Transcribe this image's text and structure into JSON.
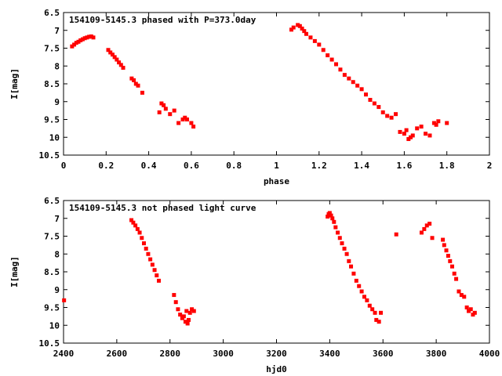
{
  "chart_data": [
    {
      "type": "scatter",
      "title": "154109-5145.3 phased with P=373.0day",
      "xlabel": "phase",
      "ylabel": "I[mag]",
      "xlim": [
        0,
        2
      ],
      "ylim": [
        10.5,
        6.5
      ],
      "y_inverted": true,
      "grid": false,
      "x_ticks": [
        "0",
        "0.2",
        "0.4",
        "0.6",
        "0.8",
        "1",
        "1.2",
        "1.4",
        "1.6",
        "1.8",
        "2"
      ],
      "y_ticks": [
        "6.5",
        "7",
        "7.5",
        "8",
        "8.5",
        "9",
        "9.5",
        "10",
        "10.5"
      ],
      "color": "#ff0000",
      "series": [
        {
          "x": [
            0.04,
            0.05,
            0.06,
            0.07,
            0.08,
            0.09,
            0.1,
            0.11,
            0.12,
            0.13,
            0.14,
            0.21,
            0.22,
            0.23,
            0.24,
            0.25,
            0.26,
            0.27,
            0.28,
            0.32,
            0.33,
            0.34,
            0.35,
            0.37,
            0.45,
            0.46,
            0.47,
            0.48,
            0.5,
            0.52,
            0.54,
            0.56,
            0.57,
            0.58,
            0.6,
            0.61,
            1.07,
            1.08,
            1.1,
            1.11,
            1.12,
            1.13,
            1.14,
            1.16,
            1.18,
            1.2,
            1.22,
            1.24,
            1.26,
            1.28,
            1.3,
            1.32,
            1.34,
            1.36,
            1.38,
            1.4,
            1.42,
            1.44,
            1.46,
            1.48,
            1.5,
            1.52,
            1.54,
            1.56,
            1.58,
            1.6,
            1.61,
            1.62,
            1.63,
            1.64,
            1.66,
            1.68,
            1.7,
            1.72,
            1.74,
            1.75,
            1.76,
            1.8
          ],
          "y": [
            7.45,
            7.4,
            7.35,
            7.32,
            7.28,
            7.25,
            7.22,
            7.2,
            7.18,
            7.17,
            7.2,
            7.55,
            7.62,
            7.68,
            7.75,
            7.82,
            7.9,
            7.97,
            8.05,
            8.35,
            8.4,
            8.5,
            8.55,
            8.75,
            9.3,
            9.05,
            9.1,
            9.2,
            9.35,
            9.25,
            9.6,
            9.5,
            9.45,
            9.5,
            9.6,
            9.7,
            6.98,
            6.92,
            6.85,
            6.88,
            6.95,
            7.02,
            7.1,
            7.2,
            7.3,
            7.4,
            7.55,
            7.7,
            7.82,
            7.95,
            8.1,
            8.25,
            8.35,
            8.45,
            8.55,
            8.65,
            8.8,
            8.95,
            9.05,
            9.15,
            9.3,
            9.4,
            9.45,
            9.35,
            9.85,
            9.9,
            9.8,
            10.05,
            10.0,
            9.95,
            9.75,
            9.7,
            9.9,
            9.95,
            9.6,
            9.65,
            9.55,
            9.6
          ]
        }
      ]
    },
    {
      "type": "scatter",
      "title": "154109-5145.3 not phased light curve",
      "xlabel": "hjd0",
      "ylabel": "I[mag]",
      "xlim": [
        2400,
        4000
      ],
      "ylim": [
        10.5,
        6.5
      ],
      "y_inverted": true,
      "grid": false,
      "x_ticks": [
        "2400",
        "2600",
        "2800",
        "3000",
        "3200",
        "3400",
        "3600",
        "3800",
        "4000"
      ],
      "y_ticks": [
        "6.5",
        "7",
        "7.5",
        "8",
        "8.5",
        "9",
        "9.5",
        "10",
        "10.5"
      ],
      "color": "#ff0000",
      "series": [
        {
          "x": [
            2402,
            2655,
            2662,
            2670,
            2678,
            2686,
            2694,
            2702,
            2710,
            2718,
            2726,
            2734,
            2742,
            2750,
            2758,
            2815,
            2822,
            2830,
            2838,
            2846,
            2852,
            2858,
            2862,
            2866,
            2870,
            2875,
            2882,
            2890,
            3392,
            3396,
            3400,
            3405,
            3410,
            3416,
            3422,
            3430,
            3438,
            3446,
            3455,
            3464,
            3472,
            3480,
            3490,
            3500,
            3510,
            3520,
            3530,
            3540,
            3550,
            3560,
            3570,
            3575,
            3585,
            3592,
            3650,
            3745,
            3755,
            3765,
            3775,
            3785,
            3825,
            3830,
            3838,
            3845,
            3852,
            3860,
            3868,
            3875,
            3885,
            3895,
            3905,
            3915,
            3922,
            3930,
            3938,
            3945
          ],
          "y": [
            9.3,
            7.05,
            7.12,
            7.2,
            7.3,
            7.4,
            7.55,
            7.7,
            7.85,
            8.0,
            8.15,
            8.3,
            8.45,
            8.6,
            8.75,
            9.15,
            9.35,
            9.55,
            9.7,
            9.8,
            9.75,
            9.9,
            9.6,
            9.95,
            9.85,
            9.65,
            9.55,
            9.6,
            6.95,
            6.88,
            6.85,
            6.92,
            7.0,
            7.1,
            7.25,
            7.4,
            7.55,
            7.7,
            7.85,
            8.0,
            8.2,
            8.35,
            8.55,
            8.75,
            8.9,
            9.05,
            9.2,
            9.3,
            9.45,
            9.55,
            9.65,
            9.85,
            9.9,
            9.65,
            7.45,
            7.4,
            7.3,
            7.2,
            7.15,
            7.55,
            7.6,
            7.75,
            7.9,
            8.05,
            8.2,
            8.35,
            8.55,
            8.7,
            9.05,
            9.15,
            9.2,
            9.5,
            9.6,
            9.55,
            9.7,
            9.65
          ]
        }
      ]
    }
  ]
}
